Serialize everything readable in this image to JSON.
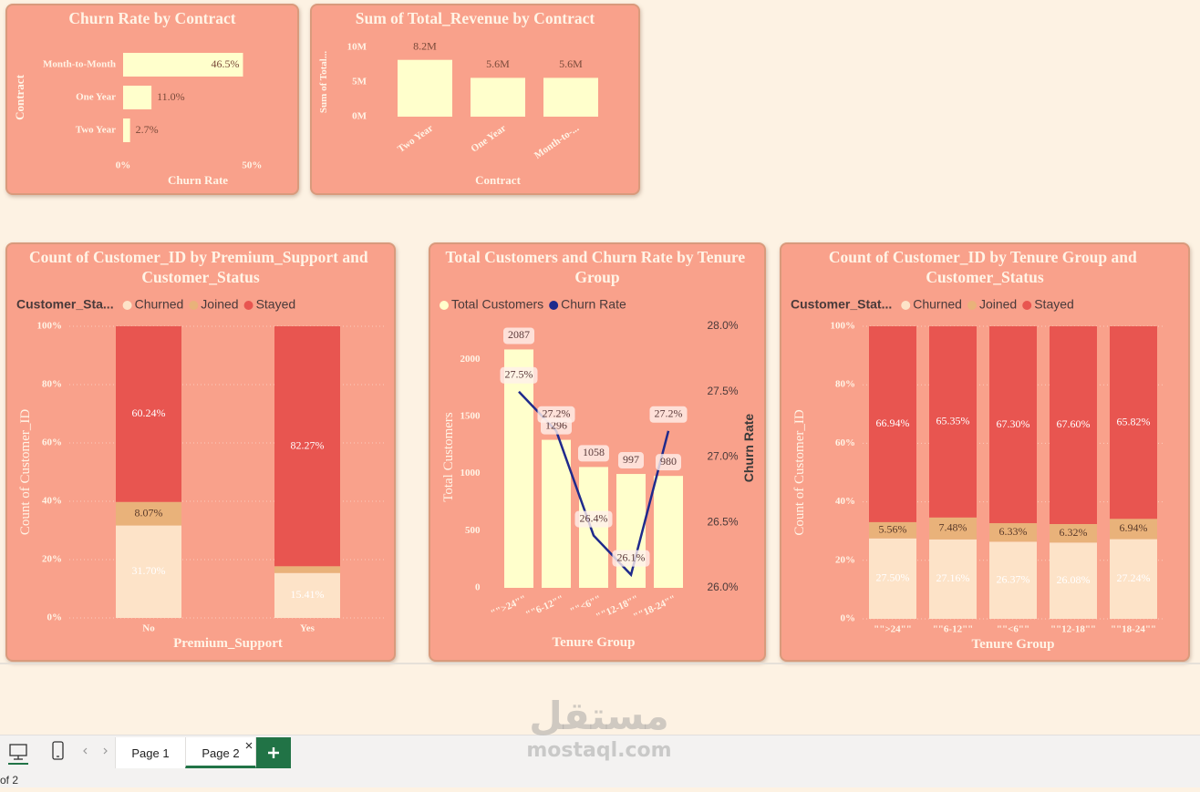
{
  "chart_data": [
    {
      "type": "barh",
      "title": "Churn Rate by Contract",
      "x_label": "Churn Rate",
      "y_label": "Contract",
      "categories": [
        "Month-to-Month",
        "One Year",
        "Two Year"
      ],
      "values": [
        46.5,
        11.0,
        2.7
      ],
      "value_labels": [
        "46.5%",
        "11.0%",
        "2.7%"
      ],
      "color": "#ffffcc",
      "xlim": [
        0,
        58
      ],
      "xticks": [
        {
          "value": 0,
          "label": "0%"
        },
        {
          "value": 50,
          "label": "50%"
        }
      ],
      "grid": false
    },
    {
      "type": "bar",
      "title": "Sum of Total_Revenue by Contract",
      "x_label": "Contract",
      "y_label": "Sum of Total...",
      "categories": [
        "Two Year",
        "One Year",
        "Month-to-..."
      ],
      "values": [
        8200000,
        5600000,
        5600000
      ],
      "value_labels": [
        "8.2M",
        "5.6M",
        "5.6M"
      ],
      "color": "#ffffcc",
      "ylim": [
        0,
        10000000
      ],
      "yticks": [
        {
          "value": 0,
          "label": "0M"
        },
        {
          "value": 5000000,
          "label": "5M"
        },
        {
          "value": 10000000,
          "label": "10M"
        }
      ],
      "grid": false
    },
    {
      "type": "stacked_bar",
      "title": "Count of Customer_ID by Premium_Support and Customer_Status",
      "x_label": "Premium_Support",
      "y_label": "Count of Customer_ID",
      "legend_title": "Customer_Sta...",
      "categories": [
        "No",
        "Yes"
      ],
      "series": [
        {
          "name": "Churned",
          "color": "#fde3c8",
          "values": [
            31.7,
            15.41
          ],
          "value_labels": [
            "31.70%",
            "15.41%"
          ]
        },
        {
          "name": "Joined",
          "color": "#e9b27a",
          "values": [
            8.07,
            2.32
          ],
          "value_labels": [
            "8.07%",
            null
          ]
        },
        {
          "name": "Stayed",
          "color": "#e85550",
          "values": [
            60.24,
            82.27
          ],
          "value_labels": [
            "60.24%",
            "82.27%"
          ]
        }
      ],
      "ylim": [
        0,
        100
      ],
      "yticks": [
        {
          "value": 0,
          "label": "0%"
        },
        {
          "value": 20,
          "label": "20%"
        },
        {
          "value": 40,
          "label": "40%"
        },
        {
          "value": 60,
          "label": "60%"
        },
        {
          "value": 80,
          "label": "80%"
        },
        {
          "value": 100,
          "label": "100%"
        }
      ],
      "grid": true
    },
    {
      "type": "bar_line",
      "title": "Total Customers and Churn Rate by Tenure Group",
      "x_label": "Tenure Group",
      "y_label": "Total Customers",
      "y2_label": "Churn Rate",
      "categories": [
        "\"\">24\"\"",
        "\"\"6-12\"\"",
        "\"\"<6\"\"",
        "\"\"12-18\"\"",
        "\"\"18-24\"\""
      ],
      "series": [
        {
          "name": "Total Customers",
          "color": "#ffffcc",
          "values": [
            2087,
            1296,
            1058,
            997,
            980
          ]
        },
        {
          "name": "Churn Rate",
          "color": "#1f2a8c",
          "axis": "y2",
          "values": [
            27.5,
            27.2,
            26.4,
            26.1,
            27.2
          ],
          "value_labels": [
            "27.5%",
            "27.2%",
            "26.4%",
            "26.1%",
            "27.2%"
          ]
        }
      ],
      "ylim": [
        0,
        2290
      ],
      "yticks": [
        0,
        500,
        1000,
        1500,
        2000
      ],
      "y2lim": [
        26,
        28
      ],
      "y2ticks": [
        {
          "value": 26,
          "label": "26.0%"
        },
        {
          "value": 26.5,
          "label": "26.5%"
        },
        {
          "value": 27,
          "label": "27.0%"
        },
        {
          "value": 27.5,
          "label": "27.5%"
        },
        {
          "value": 28,
          "label": "28.0%"
        }
      ],
      "grid": false
    },
    {
      "type": "stacked_bar",
      "title": "Count of Customer_ID by Tenure Group and Customer_Status",
      "x_label": "Tenure Group",
      "y_label": "Count of Customer_ID",
      "legend_title": "Customer_Stat...",
      "categories": [
        "\"\">24\"\"",
        "\"\"6-12\"\"",
        "\"\"<6\"\"",
        "\"\"12-18\"\"",
        "\"\"18-24\"\""
      ],
      "series": [
        {
          "name": "Churned",
          "color": "#fde3c8",
          "values": [
            27.5,
            27.16,
            26.37,
            26.08,
            27.24
          ],
          "value_labels": [
            "27.50%",
            "27.16%",
            "26.37%",
            "26.08%",
            "27.24%"
          ]
        },
        {
          "name": "Joined",
          "color": "#e9b27a",
          "values": [
            5.56,
            7.48,
            6.33,
            6.32,
            6.94
          ],
          "value_labels": [
            "5.56%",
            "7.48%",
            "6.33%",
            "6.32%",
            "6.94%"
          ]
        },
        {
          "name": "Stayed",
          "color": "#e85550",
          "values": [
            66.94,
            65.35,
            67.3,
            67.6,
            65.82
          ],
          "value_labels": [
            "66.94%",
            "65.35%",
            "67.30%",
            "67.60%",
            "65.82%"
          ]
        }
      ],
      "ylim": [
        0,
        100
      ],
      "yticks": [
        {
          "value": 0,
          "label": "0%"
        },
        {
          "value": 20,
          "label": "20%"
        },
        {
          "value": 40,
          "label": "40%"
        },
        {
          "value": 60,
          "label": "60%"
        },
        {
          "value": 80,
          "label": "80%"
        },
        {
          "value": 100,
          "label": "100%"
        }
      ],
      "grid": true
    }
  ],
  "tabs": [
    "Page 1",
    "Page 2"
  ],
  "page_status": "of 2",
  "watermark": [
    "مستقل",
    "mostaql.com"
  ]
}
